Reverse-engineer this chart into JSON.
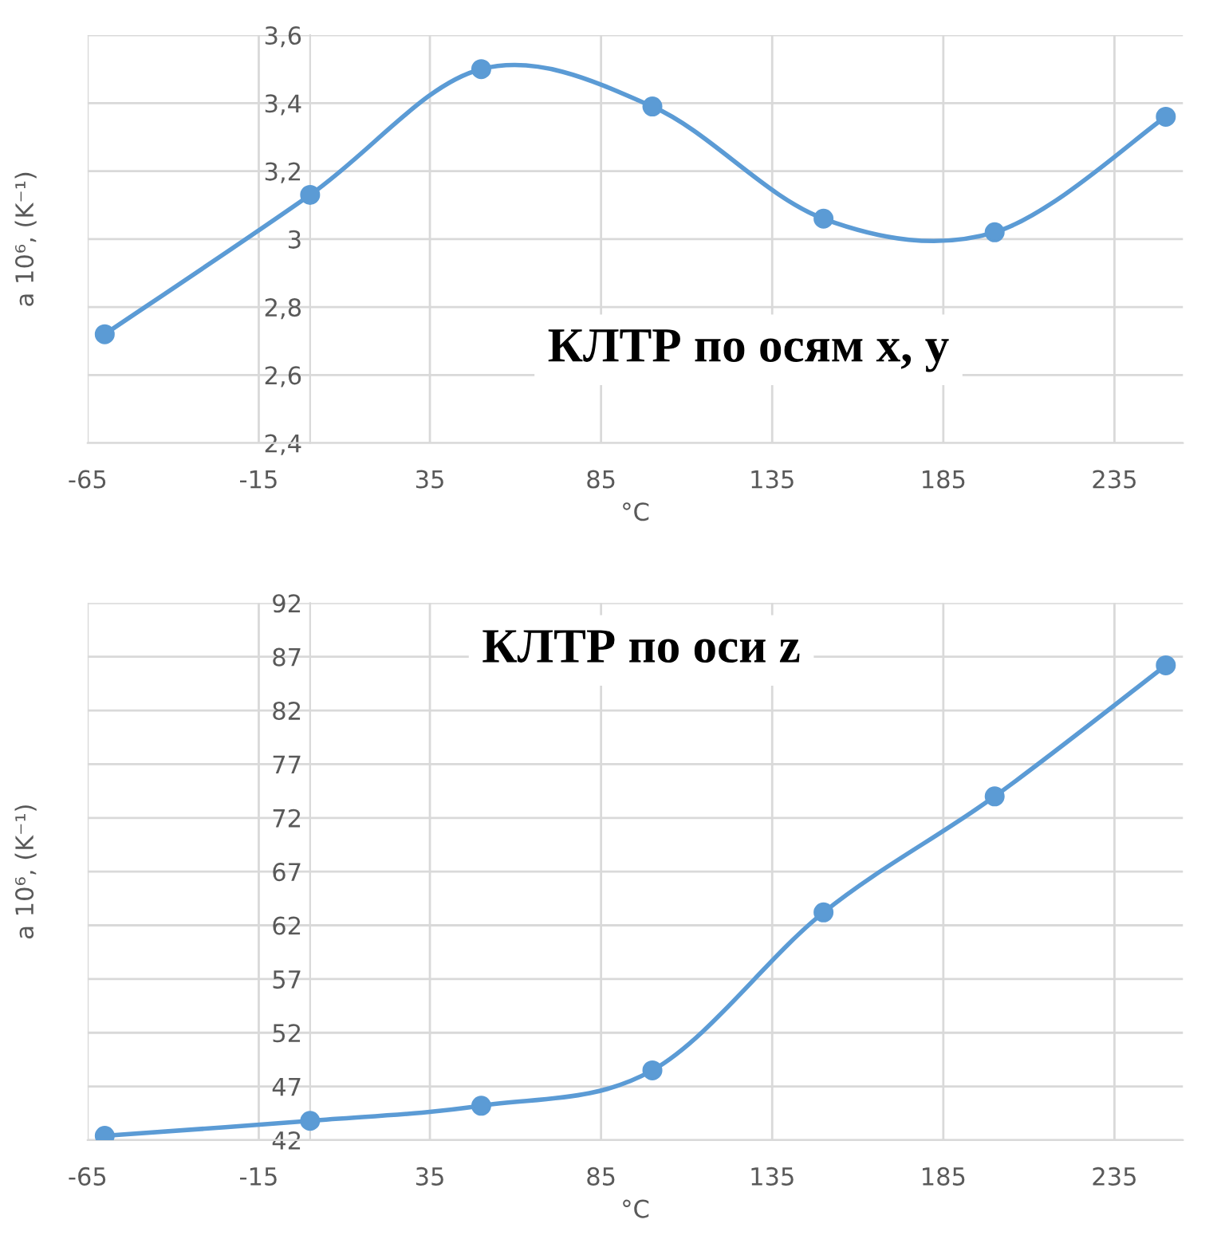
{
  "chart_data": [
    {
      "type": "line",
      "title": "КЛТР по осям x, y",
      "xlabel": "°C",
      "ylabel": "a 10⁶, (K⁻¹)",
      "x": [
        -60,
        0,
        50,
        100,
        150,
        200,
        250
      ],
      "series": [
        {
          "color": "#5b9bd5",
          "values": [
            2.72,
            3.13,
            3.5,
            3.39,
            3.06,
            3.02,
            3.36
          ]
        }
      ],
      "xlim": [
        -65,
        255
      ],
      "xticks": [
        -65,
        -15,
        35,
        85,
        135,
        185,
        235
      ],
      "ylim": [
        2.4,
        3.6
      ],
      "yticks": [
        {
          "value": 2.4,
          "label": "2,4"
        },
        {
          "value": 2.6,
          "label": "2,6"
        },
        {
          "value": 2.8,
          "label": "2,8"
        },
        {
          "value": 3.0,
          "label": "3"
        },
        {
          "value": 3.2,
          "label": "3,2"
        },
        {
          "value": 3.4,
          "label": "3,4"
        },
        {
          "value": 3.6,
          "label": "3,6"
        }
      ],
      "grid": true,
      "marker": "circle",
      "line_style": "solid"
    },
    {
      "type": "line",
      "title": "КЛТР по оси z",
      "xlabel": "°C",
      "ylabel": "a 10⁶, (K⁻¹)",
      "x": [
        -60,
        0,
        50,
        100,
        150,
        200,
        250
      ],
      "series": [
        {
          "color": "#5b9bd5",
          "values": [
            42.4,
            43.8,
            45.2,
            48.5,
            63.2,
            74.0,
            86.2
          ]
        }
      ],
      "xlim": [
        -65,
        255
      ],
      "xticks": [
        -65,
        -15,
        35,
        85,
        135,
        185,
        235
      ],
      "ylim": [
        42,
        92
      ],
      "yticks": [
        42,
        47,
        52,
        57,
        62,
        67,
        72,
        77,
        82,
        87,
        92
      ],
      "grid": true,
      "marker": "circle",
      "line_style": "solid"
    }
  ]
}
